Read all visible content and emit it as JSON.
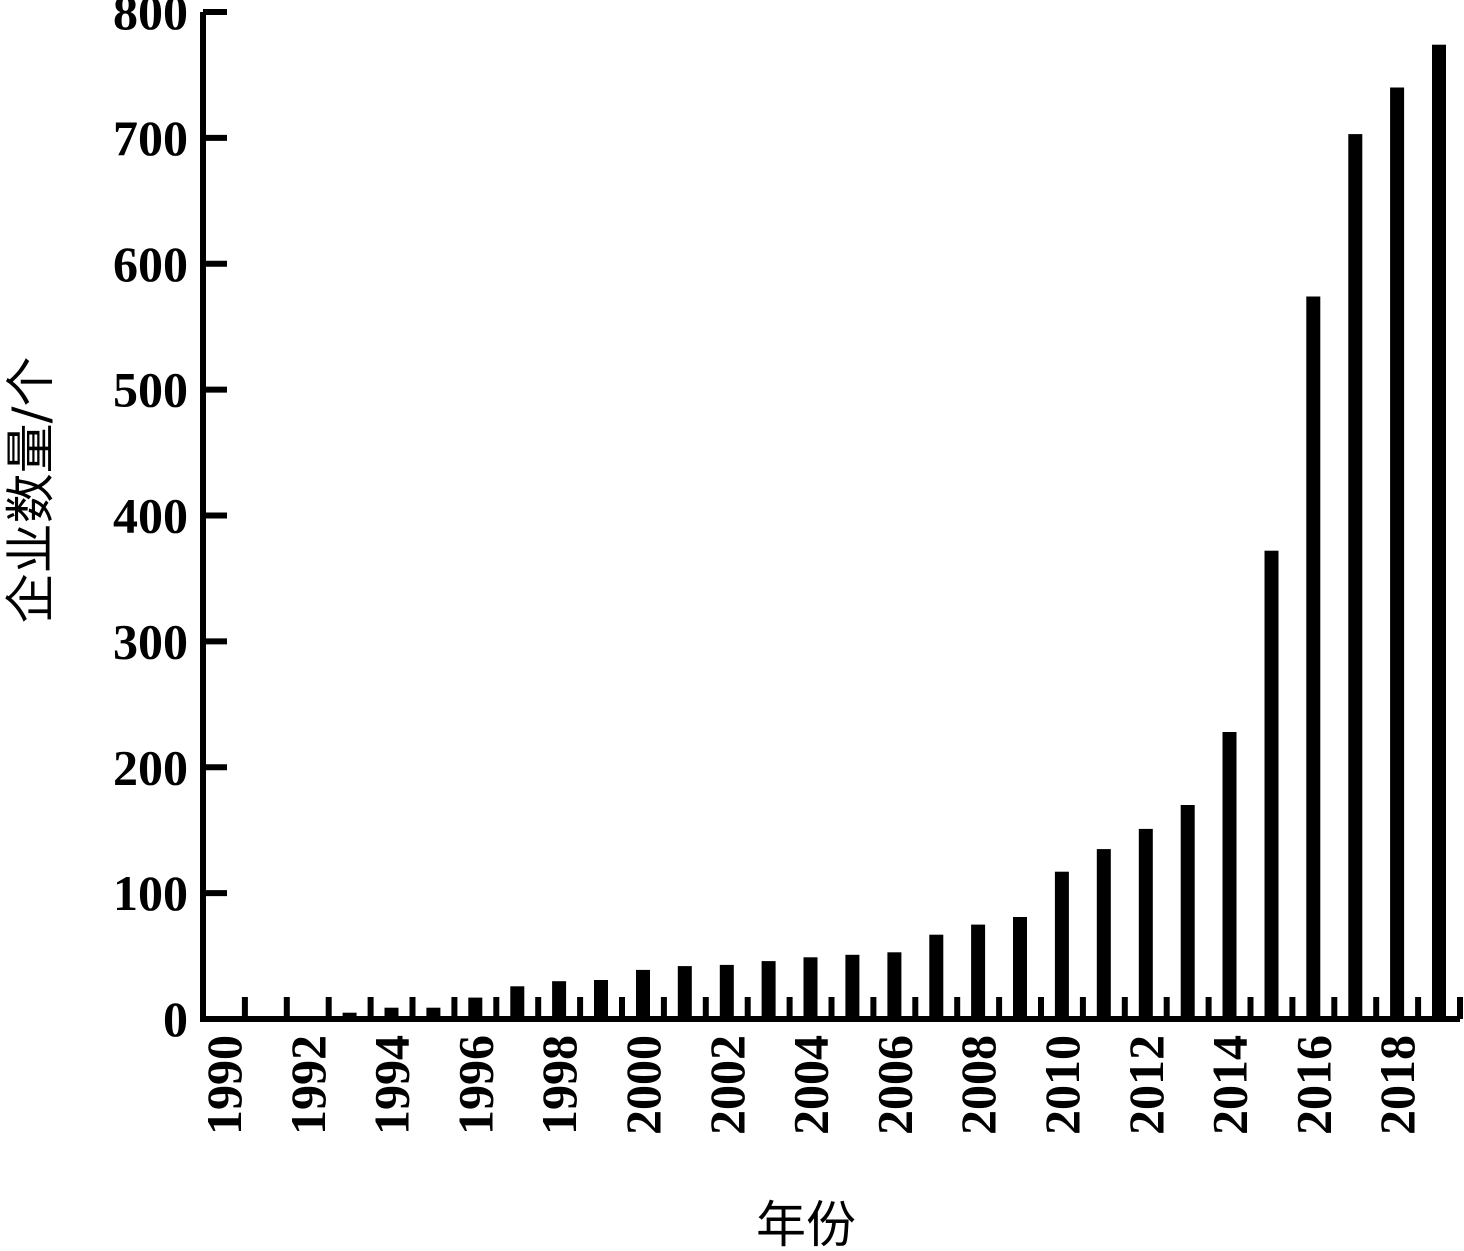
{
  "chart_data": {
    "type": "bar",
    "title": "",
    "xlabel": "年份",
    "ylabel": "企业数量/个",
    "ylim": [
      0,
      800
    ],
    "yticks": [
      0,
      100,
      200,
      300,
      400,
      500,
      600,
      700,
      800
    ],
    "xtick_labels": [
      "1990",
      "1992",
      "1994",
      "1996",
      "1998",
      "2000",
      "2002",
      "2004",
      "2006",
      "2008",
      "2010",
      "2012",
      "2014",
      "2016",
      "2018"
    ],
    "grid": false,
    "legend": "none",
    "bar_color": "#000000",
    "categories": [
      "1990",
      "1991",
      "1992",
      "1993",
      "1994",
      "1995",
      "1996",
      "1997",
      "1998",
      "1999",
      "2000",
      "2001",
      "2002",
      "2003",
      "2004",
      "2005",
      "2006",
      "2007",
      "2008",
      "2009",
      "2010",
      "2011",
      "2012",
      "2013",
      "2014",
      "2015",
      "2016",
      "2017",
      "2018",
      "2019"
    ],
    "values": [
      0,
      0,
      0,
      5,
      9,
      9,
      17,
      26,
      30,
      31,
      39,
      42,
      43,
      46,
      49,
      51,
      53,
      67,
      75,
      81,
      117,
      135,
      151,
      170,
      228,
      372,
      574,
      703,
      740,
      774
    ]
  }
}
